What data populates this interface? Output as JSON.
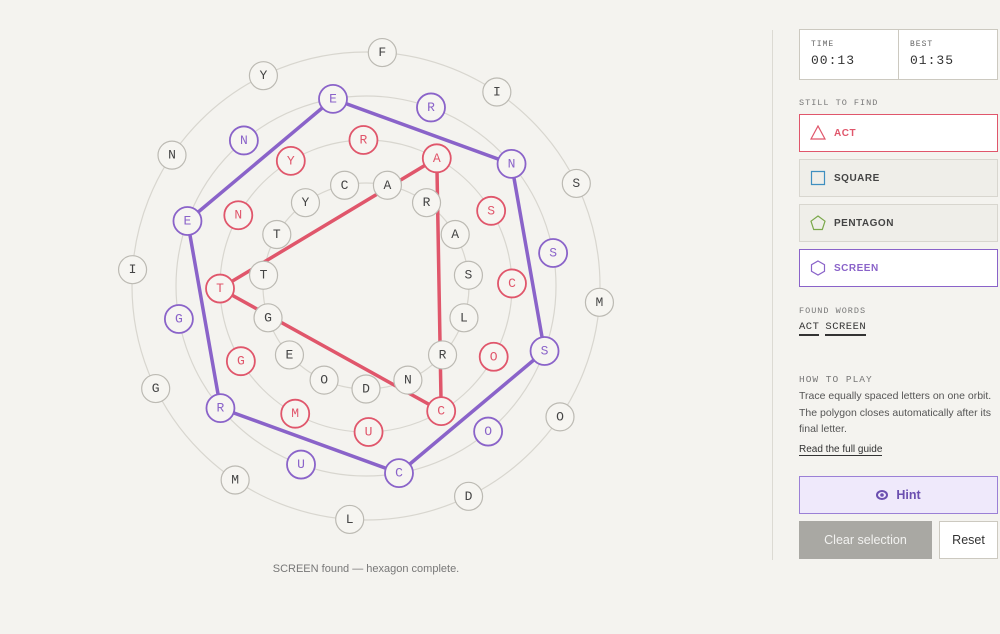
{
  "timer": {
    "time_label": "TIME",
    "time": "00:13",
    "best_label": "BEST",
    "best": "01:35"
  },
  "still_to_find": {
    "title": "STILL TO FIND",
    "words": [
      {
        "text": "ACT",
        "shape": "triangle",
        "color": "#e0566b"
      },
      {
        "text": "SQUARE",
        "shape": "square",
        "color": "#3f8fc0"
      },
      {
        "text": "PENTAGON",
        "shape": "pentagon",
        "color": "#7aa84a"
      },
      {
        "text": "SCREEN",
        "shape": "hexagon",
        "color": "#8a63c9"
      }
    ]
  },
  "found_words": {
    "title": "FOUND WORDS",
    "words": [
      "ACT",
      "SCREEN"
    ]
  },
  "how_to_play": {
    "title": "HOW TO PLAY",
    "text": "Trace equally spaced letters on one orbit. The polygon closes automatically after its final letter.",
    "link": "Read the full guide"
  },
  "buttons": {
    "hint": "Hint",
    "clear": "Clear selection",
    "reset": "Reset"
  },
  "status": "SCREEN found — hexagon complete.",
  "orbits": [
    {
      "letters": [
        "C",
        "A",
        "R",
        "A",
        "S",
        "L",
        "R",
        "N",
        "D",
        "O",
        "E",
        "G",
        "T",
        "T",
        "Y"
      ]
    },
    {
      "letters": [
        "A",
        "S",
        "C",
        "O",
        "C",
        "U",
        "M",
        "G",
        "T",
        "N",
        "Y",
        "R"
      ]
    },
    {
      "letters": [
        "E",
        "R",
        "N",
        "S",
        "S",
        "O",
        "C",
        "U",
        "R",
        "G",
        "E",
        "N"
      ]
    },
    {
      "letters": [
        "F",
        "I",
        "S",
        "M",
        "O",
        "D",
        "L",
        "M",
        "G",
        "I",
        "N",
        "Y"
      ]
    }
  ]
}
